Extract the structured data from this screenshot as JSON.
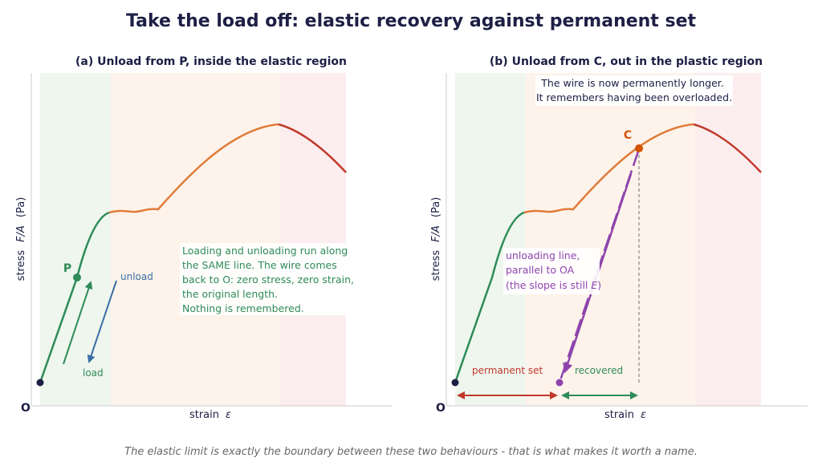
{
  "title": "Take the load off: elastic recovery against permanent set",
  "caption": "The elastic limit is exactly the boundary between these two behaviours - that is what makes it worth a name.",
  "colors": {
    "ink": "#1d1f45",
    "elastic": "#2e8b57",
    "plastic": "#e07b39",
    "necking": "#c0392b",
    "unload_blue": "#3a6ea5",
    "unload_purple": "#8e44ad",
    "grey": "#666666",
    "zone_elastic": "#eef6ee",
    "zone_plastic": "#fdf3ea",
    "zone_necking": "#fcedee"
  },
  "axes": {
    "ylabel_prefix": "stress",
    "ylabel_symbol": "F/A",
    "ylabel_unit": "(Pa)",
    "xlabel_prefix": "strain",
    "xlabel_symbol": "ε",
    "origin": "O"
  },
  "panel_a": {
    "title": "(a) Unload from P, inside the elastic region",
    "point_label": "P",
    "unload_label": "unload",
    "load_label": "load",
    "note": [
      "Loading and unloading run along",
      "the SAME line. The wire comes",
      "back to O: zero stress, zero strain,",
      "the original length.",
      "Nothing is remembered."
    ]
  },
  "panel_b": {
    "title": "(b) Unload from C, out in the plastic region",
    "point_label": "C",
    "top_note": [
      "The wire is now permanently longer.",
      "It remembers having been overloaded."
    ],
    "unloading_note": [
      "unloading line,",
      "parallel to OA",
      "(the slope is still "
    ],
    "slope_symbol": "E",
    "permanent_set_label": "permanent set",
    "recovered_label": "recovered"
  }
}
